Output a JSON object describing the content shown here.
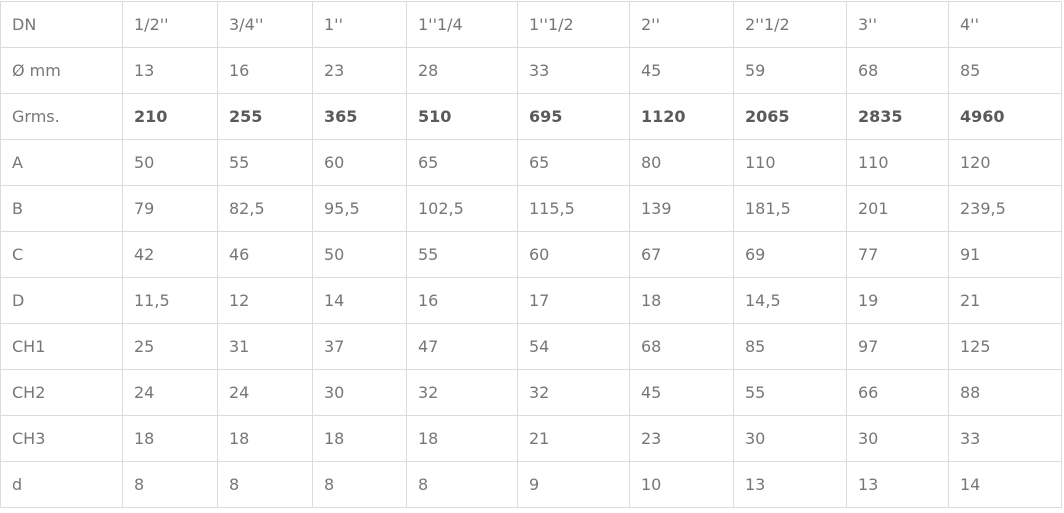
{
  "table": {
    "rows": [
      {
        "label": "DN",
        "values": [
          "1/2''",
          "3/4''",
          "1''",
          "1''1/4",
          "1''1/2",
          "2''",
          "2''1/2",
          "3''",
          "4''"
        ]
      },
      {
        "label": "Ø mm",
        "values": [
          "13",
          "16",
          "23",
          "28",
          "33",
          "45",
          "59",
          "68",
          "85"
        ]
      },
      {
        "label": "Grms.",
        "bold": true,
        "values": [
          "210",
          "255",
          "365",
          "510",
          "695",
          "1120",
          "2065",
          "2835",
          "4960"
        ]
      },
      {
        "label": "A",
        "values": [
          "50",
          "55",
          "60",
          "65",
          "65",
          "80",
          "110",
          "110",
          "120"
        ]
      },
      {
        "label": "B",
        "values": [
          "79",
          "82,5",
          "95,5",
          "102,5",
          "115,5",
          "139",
          "181,5",
          "201",
          "239,5"
        ]
      },
      {
        "label": "C",
        "values": [
          "42",
          "46",
          "50",
          "55",
          "60",
          "67",
          "69",
          "77",
          "91"
        ]
      },
      {
        "label": "D",
        "values": [
          "11,5",
          "12",
          "14",
          "16",
          "17",
          "18",
          "14,5",
          "19",
          "21"
        ]
      },
      {
        "label": "CH1",
        "values": [
          "25",
          "31",
          "37",
          "47",
          "54",
          "68",
          "85",
          "97",
          "125"
        ]
      },
      {
        "label": "CH2",
        "values": [
          "24",
          "24",
          "30",
          "32",
          "32",
          "45",
          "55",
          "66",
          "88"
        ]
      },
      {
        "label": "CH3",
        "values": [
          "18",
          "18",
          "18",
          "18",
          "21",
          "23",
          "30",
          "30",
          "33"
        ]
      },
      {
        "label": "d",
        "values": [
          "8",
          "8",
          "8",
          "8",
          "9",
          "10",
          "13",
          "13",
          "14"
        ]
      }
    ]
  }
}
